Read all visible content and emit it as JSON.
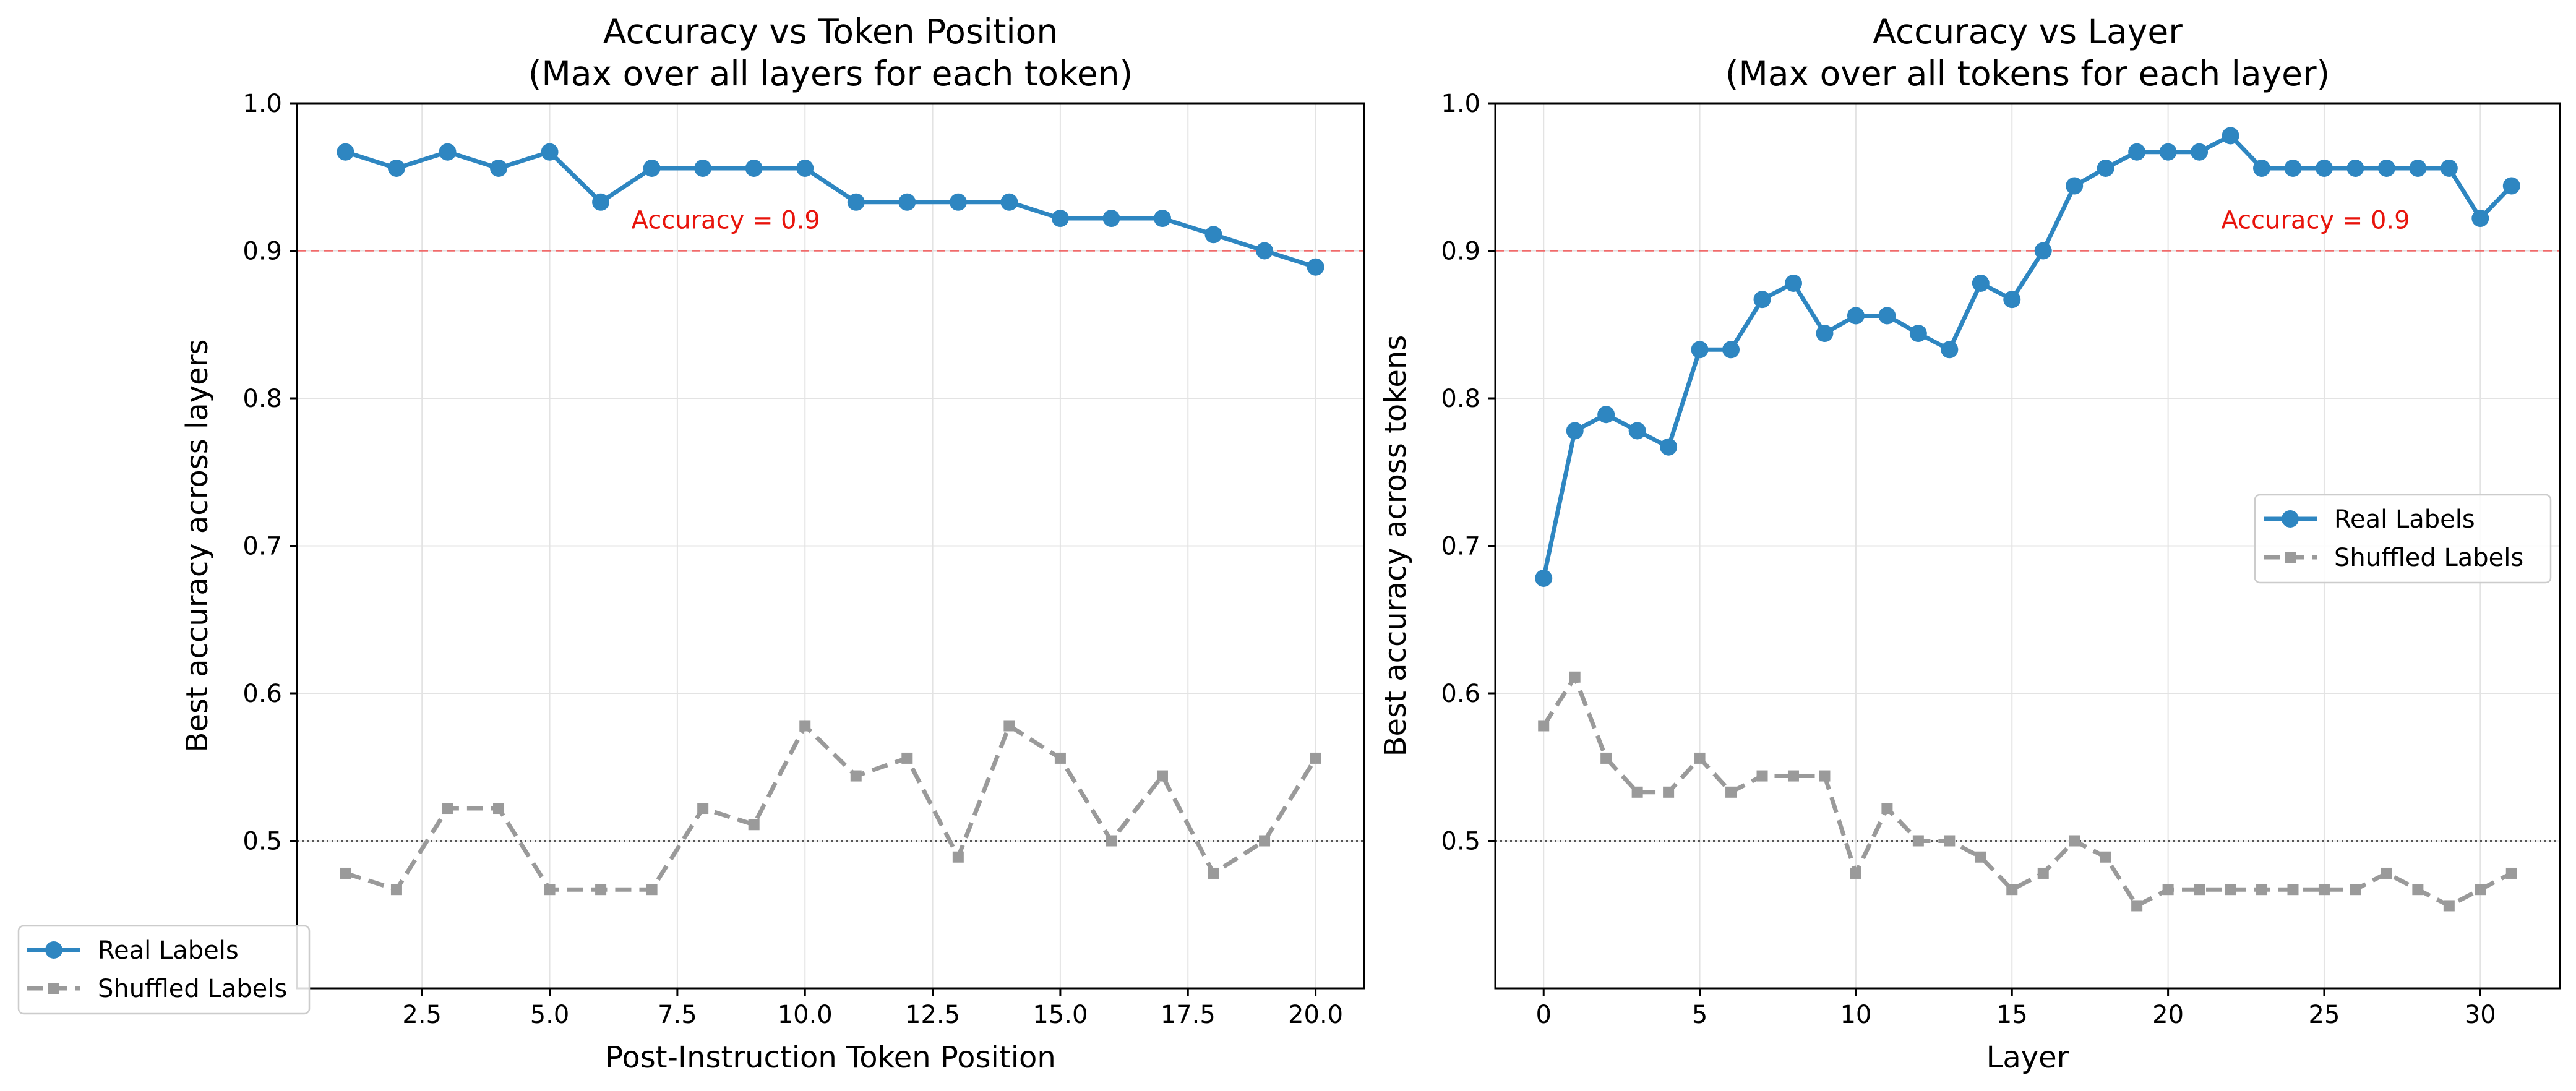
{
  "chart_data": [
    {
      "type": "line",
      "title": "Accuracy vs Token Position",
      "subtitle": "(Max over all layers for each token)",
      "xlabel": "Post-Instruction Token Position",
      "ylabel": "Best accuracy across layers",
      "xlim": [
        0.05,
        20.95
      ],
      "ylim": [
        0.4,
        1.0
      ],
      "xticks": [
        2.5,
        5.0,
        7.5,
        10.0,
        12.5,
        15.0,
        17.5,
        20.0
      ],
      "xtick_labels": [
        "2.5",
        "5.0",
        "7.5",
        "10.0",
        "12.5",
        "15.0",
        "17.5",
        "20.0"
      ],
      "yticks": [
        0.5,
        0.6,
        0.7,
        0.8,
        0.9,
        1.0
      ],
      "ytick_labels": [
        "0.5",
        "0.6",
        "0.7",
        "0.8",
        "0.9",
        "1.0"
      ],
      "grid": true,
      "legend_position": "outside-bottom-left",
      "x": [
        1,
        2,
        3,
        4,
        5,
        6,
        7,
        8,
        9,
        10,
        11,
        12,
        13,
        14,
        15,
        16,
        17,
        18,
        19,
        20
      ],
      "series": [
        {
          "name": "Real Labels",
          "marker": "circle",
          "line_style": "solid",
          "color": "#2e86c1",
          "values": [
            0.967,
            0.956,
            0.967,
            0.956,
            0.967,
            0.933,
            0.956,
            0.956,
            0.956,
            0.956,
            0.933,
            0.933,
            0.933,
            0.933,
            0.922,
            0.922,
            0.922,
            0.911,
            0.9,
            0.889
          ]
        },
        {
          "name": "Shuffled Labels",
          "marker": "square",
          "line_style": "dashed",
          "color": "#9a9a9a",
          "values": [
            0.478,
            0.467,
            0.522,
            0.522,
            0.467,
            0.467,
            0.467,
            0.522,
            0.511,
            0.578,
            0.544,
            0.556,
            0.489,
            0.578,
            0.556,
            0.5,
            0.544,
            0.478,
            0.5,
            0.556
          ]
        }
      ],
      "reference_lines": [
        {
          "value": 0.9,
          "style": "dashed",
          "color": "#f06b6b",
          "label": "Accuracy = 0.9",
          "label_x": 6.6
        },
        {
          "value": 0.5,
          "style": "dotted",
          "color": "#555555",
          "label": ""
        }
      ]
    },
    {
      "type": "line",
      "title": "Accuracy vs Layer",
      "subtitle": "(Max over all tokens for each layer)",
      "xlabel": "Layer",
      "ylabel": "Best accuracy across tokens",
      "xlim": [
        -1.55,
        32.55
      ],
      "ylim": [
        0.4,
        1.0
      ],
      "xticks": [
        0,
        5,
        10,
        15,
        20,
        25,
        30
      ],
      "xtick_labels": [
        "0",
        "5",
        "10",
        "15",
        "20",
        "25",
        "30"
      ],
      "yticks": [
        0.5,
        0.6,
        0.7,
        0.8,
        0.9,
        1.0
      ],
      "ytick_labels": [
        "0.5",
        "0.6",
        "0.7",
        "0.8",
        "0.9",
        "1.0"
      ],
      "grid": true,
      "legend_position": "center-right",
      "x": [
        0,
        1,
        2,
        3,
        4,
        5,
        6,
        7,
        8,
        9,
        10,
        11,
        12,
        13,
        14,
        15,
        16,
        17,
        18,
        19,
        20,
        21,
        22,
        23,
        24,
        25,
        26,
        27,
        28,
        29,
        30,
        31
      ],
      "series": [
        {
          "name": "Real Labels",
          "marker": "circle",
          "line_style": "solid",
          "color": "#2e86c1",
          "values": [
            0.678,
            0.778,
            0.789,
            0.778,
            0.767,
            0.833,
            0.833,
            0.867,
            0.878,
            0.844,
            0.856,
            0.856,
            0.844,
            0.833,
            0.878,
            0.867,
            0.9,
            0.944,
            0.956,
            0.967,
            0.967,
            0.967,
            0.978,
            0.956,
            0.956,
            0.956,
            0.956,
            0.956,
            0.956,
            0.956,
            0.922,
            0.944
          ]
        },
        {
          "name": "Shuffled Labels",
          "marker": "square",
          "line_style": "dashed",
          "color": "#9a9a9a",
          "values": [
            0.578,
            0.611,
            0.556,
            0.533,
            0.533,
            0.556,
            0.533,
            0.544,
            0.544,
            0.544,
            0.478,
            0.522,
            0.5,
            0.5,
            0.489,
            0.467,
            0.478,
            0.5,
            0.489,
            0.456,
            0.467,
            0.467,
            0.467,
            0.467,
            0.467,
            0.467,
            0.467,
            0.478,
            0.467,
            0.456,
            0.467,
            0.478
          ]
        }
      ],
      "reference_lines": [
        {
          "value": 0.9,
          "style": "dashed",
          "color": "#f06b6b",
          "label": "Accuracy = 0.9",
          "label_x": 21.7
        },
        {
          "value": 0.5,
          "style": "dotted",
          "color": "#555555",
          "label": ""
        }
      ]
    }
  ]
}
